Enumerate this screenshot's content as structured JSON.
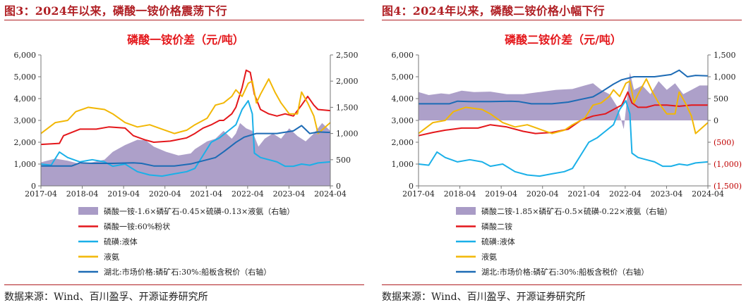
{
  "panels": [
    {
      "figure_title": "图3：2024年以来，磷酸一铵价格震荡下行",
      "source": "数据来源：Wind、百川盈孚、开源证券研究所"
    },
    {
      "figure_title": "图4：2024年以来，磷酸二铵价格小幅下行",
      "source": "数据来源：Wind、百川盈孚、开源证券研究所"
    }
  ],
  "chart_data": [
    {
      "type": "line",
      "title": "磷酸一铵价差（元/吨）",
      "x_ticks": [
        "2017-04",
        "2018-04",
        "2019-04",
        "2020-04",
        "2021-04",
        "2022-04",
        "2023-04",
        "2024-04"
      ],
      "x_range": [
        2017.25,
        2024.3
      ],
      "ylim_left": [
        0,
        6000
      ],
      "yticks_left": [
        "0",
        "1,000",
        "2,000",
        "3,000",
        "4,000",
        "5,000",
        "6,000"
      ],
      "ylim_right": [
        0,
        2500
      ],
      "yticks_right": [
        "0",
        "500",
        "1,000",
        "1,500",
        "2,000",
        "2,500"
      ],
      "grid": false,
      "legend_position": "bottom",
      "series": [
        {
          "name": "磷酸一铵-1.6×磷矿石-0.45×硫磺-0.13×液氨（右轴）",
          "render": "area",
          "axis": "right",
          "color": "#a99bc6",
          "x": [
            2017.25,
            2017.6,
            2017.9,
            2018.2,
            2018.5,
            2018.8,
            2019.0,
            2019.3,
            2019.6,
            2019.8,
            2020.0,
            2020.3,
            2020.6,
            2020.9,
            2021.0,
            2021.3,
            2021.5,
            2021.7,
            2021.9,
            2022.0,
            2022.1,
            2022.25,
            2022.4,
            2022.55,
            2022.7,
            2022.9,
            2023.1,
            2023.3,
            2023.5,
            2023.7,
            2023.9,
            2024.1,
            2024.3
          ],
          "values": [
            450,
            520,
            480,
            420,
            450,
            500,
            650,
            780,
            880,
            870,
            750,
            650,
            580,
            620,
            700,
            850,
            900,
            1050,
            900,
            1000,
            1200,
            1100,
            1050,
            750,
            900,
            1000,
            900,
            1100,
            950,
            850,
            1000,
            1200,
            1050
          ]
        },
        {
          "name": "磷酸一铵:60%粉状",
          "render": "line",
          "axis": "left",
          "color": "#e4171b",
          "x": [
            2017.25,
            2017.7,
            2017.8,
            2018.0,
            2018.2,
            2018.6,
            2018.9,
            2019.3,
            2019.5,
            2019.8,
            2020.0,
            2020.4,
            2020.8,
            2020.9,
            2021.0,
            2021.2,
            2021.4,
            2021.6,
            2021.7,
            2021.9,
            2022.0,
            2022.15,
            2022.25,
            2022.35,
            2022.45,
            2022.6,
            2022.8,
            2023.0,
            2023.2,
            2023.4,
            2023.6,
            2023.75,
            2023.9,
            2024.0,
            2024.3
          ],
          "values": [
            1900,
            1950,
            2300,
            2450,
            2600,
            2600,
            2700,
            2650,
            2300,
            2100,
            2000,
            2050,
            2200,
            2300,
            2400,
            2650,
            2800,
            3000,
            3000,
            3300,
            3600,
            4500,
            5300,
            5200,
            4200,
            3500,
            3300,
            3200,
            3300,
            3200,
            3700,
            4100,
            3700,
            3500,
            3450
          ]
        },
        {
          "name": "硫磺:液体",
          "render": "line",
          "axis": "left",
          "color": "#1ab0e8",
          "x": [
            2017.25,
            2017.5,
            2017.7,
            2017.9,
            2018.2,
            2018.5,
            2018.8,
            2019.0,
            2019.3,
            2019.6,
            2019.9,
            2020.2,
            2020.5,
            2020.8,
            2021.0,
            2021.2,
            2021.4,
            2021.6,
            2021.8,
            2022.0,
            2022.15,
            2022.3,
            2022.4,
            2022.45,
            2022.6,
            2022.8,
            2023.0,
            2023.2,
            2023.4,
            2023.6,
            2023.8,
            2024.0,
            2024.3
          ],
          "values": [
            1000,
            950,
            1550,
            1300,
            1100,
            1200,
            1100,
            900,
            1000,
            650,
            500,
            450,
            550,
            650,
            800,
            1400,
            2000,
            2200,
            2500,
            2800,
            3500,
            3900,
            3300,
            1500,
            1300,
            1200,
            1100,
            900,
            900,
            1000,
            950,
            1050,
            1100
          ]
        },
        {
          "name": "液氨",
          "render": "line",
          "axis": "left",
          "color": "#f2b705",
          "x": [
            2017.25,
            2017.6,
            2017.9,
            2018.1,
            2018.4,
            2018.8,
            2019.0,
            2019.3,
            2019.6,
            2019.9,
            2020.2,
            2020.5,
            2020.8,
            2021.0,
            2021.3,
            2021.5,
            2021.7,
            2021.9,
            2022.0,
            2022.15,
            2022.3,
            2022.4,
            2022.5,
            2022.6,
            2022.8,
            2022.95,
            2023.1,
            2023.3,
            2023.5,
            2023.6,
            2023.75,
            2023.9,
            2024.0,
            2024.3
          ],
          "values": [
            2400,
            2900,
            3000,
            3400,
            3600,
            3500,
            3300,
            2900,
            2700,
            2800,
            2600,
            2400,
            2550,
            2800,
            3100,
            3700,
            3800,
            4100,
            4400,
            4100,
            4700,
            4800,
            3800,
            4200,
            4900,
            4300,
            3800,
            3300,
            3300,
            4300,
            3800,
            3200,
            2400,
            2900
          ]
        },
        {
          "name": "湖北:市场价格:磷矿石:30%:船板含税价（右轴）",
          "render": "line",
          "axis": "right",
          "color": "#1d6bb5",
          "x": [
            2017.25,
            2018.0,
            2018.2,
            2018.5,
            2019.0,
            2019.5,
            2019.7,
            2020.0,
            2020.5,
            2020.9,
            2021.2,
            2021.5,
            2021.7,
            2021.85,
            2022.0,
            2022.2,
            2022.5,
            2023.0,
            2023.4,
            2023.6,
            2023.8,
            2024.0,
            2024.3
          ],
          "values": [
            380,
            380,
            440,
            430,
            430,
            440,
            430,
            380,
            380,
            420,
            480,
            540,
            650,
            740,
            830,
            930,
            1000,
            1000,
            1050,
            1150,
            1000,
            1030,
            1020
          ]
        }
      ]
    },
    {
      "type": "line",
      "title": "磷酸二铵价差（元/吨）",
      "x_ticks": [
        "2017-04",
        "2018-04",
        "2019-04",
        "2020-04",
        "2021-04",
        "2022-04",
        "2023-04",
        "2024-04"
      ],
      "x_range": [
        2017.25,
        2024.3
      ],
      "ylim_left": [
        0,
        6000
      ],
      "yticks_left": [
        "0",
        "1,000",
        "2,000",
        "3,000",
        "4,000",
        "5,000",
        "6,000"
      ],
      "ylim_right": [
        -1500,
        1500
      ],
      "yticks_right": [
        "(1,500)",
        "(1,000)",
        "(500)",
        "0",
        "500",
        "1,000",
        "1,500"
      ],
      "grid": false,
      "legend_position": "bottom",
      "series": [
        {
          "name": "磷酸二铵-1.85×磷矿石-0.5×硫磺-0.22×液氨（右轴）",
          "render": "area",
          "axis": "right",
          "color": "#a99bc6",
          "x": [
            2017.25,
            2017.5,
            2017.8,
            2018.0,
            2018.3,
            2018.6,
            2019.0,
            2019.4,
            2019.8,
            2020.2,
            2020.6,
            2021.0,
            2021.3,
            2021.5,
            2021.7,
            2021.9,
            2022.1,
            2022.25,
            2022.4,
            2022.5,
            2022.7,
            2022.9,
            2023.1,
            2023.3,
            2023.5,
            2023.7,
            2023.9,
            2024.1,
            2024.3
          ],
          "values": [
            650,
            580,
            620,
            600,
            680,
            650,
            660,
            600,
            600,
            650,
            700,
            720,
            800,
            850,
            700,
            600,
            300,
            -200,
            1100,
            700,
            800,
            600,
            900,
            700,
            850,
            600,
            700,
            800,
            800
          ]
        },
        {
          "name": "磷酸二铵",
          "render": "line",
          "axis": "left",
          "color": "#e4171b",
          "x": [
            2017.25,
            2017.6,
            2017.9,
            2018.3,
            2018.7,
            2019.0,
            2019.4,
            2019.8,
            2020.1,
            2020.5,
            2020.9,
            2021.2,
            2021.5,
            2021.8,
            2022.0,
            2022.2,
            2022.35,
            2022.45,
            2022.6,
            2022.8,
            2023.0,
            2023.3,
            2023.6,
            2023.9,
            2024.1,
            2024.3
          ],
          "values": [
            2300,
            2450,
            2550,
            2650,
            2650,
            2800,
            2700,
            2500,
            2400,
            2450,
            2600,
            3000,
            3200,
            3300,
            3500,
            3700,
            4300,
            3800,
            3600,
            3600,
            3700,
            3700,
            3650,
            3700,
            3700,
            3700
          ]
        },
        {
          "name": "硫磺:液体",
          "render": "line",
          "axis": "left",
          "color": "#1ab0e8",
          "x": [
            2017.25,
            2017.5,
            2017.7,
            2017.9,
            2018.2,
            2018.5,
            2018.8,
            2019.0,
            2019.3,
            2019.6,
            2019.9,
            2020.2,
            2020.5,
            2020.8,
            2021.0,
            2021.2,
            2021.4,
            2021.6,
            2021.8,
            2022.0,
            2022.15,
            2022.3,
            2022.4,
            2022.45,
            2022.6,
            2022.8,
            2023.0,
            2023.2,
            2023.4,
            2023.6,
            2023.8,
            2024.0,
            2024.3
          ],
          "values": [
            1000,
            950,
            1550,
            1300,
            1100,
            1200,
            1100,
            900,
            1000,
            650,
            500,
            450,
            550,
            650,
            800,
            1400,
            2000,
            2200,
            2500,
            2800,
            3500,
            3900,
            3300,
            1500,
            1300,
            1200,
            1100,
            900,
            900,
            1000,
            950,
            1050,
            1100
          ]
        },
        {
          "name": "液氨",
          "render": "line",
          "axis": "left",
          "color": "#f2b705",
          "x": [
            2017.25,
            2017.6,
            2017.9,
            2018.1,
            2018.4,
            2018.8,
            2019.0,
            2019.3,
            2019.6,
            2019.9,
            2020.2,
            2020.5,
            2020.8,
            2021.0,
            2021.3,
            2021.5,
            2021.7,
            2021.9,
            2022.0,
            2022.15,
            2022.3,
            2022.4,
            2022.5,
            2022.6,
            2022.8,
            2022.95,
            2023.1,
            2023.3,
            2023.5,
            2023.6,
            2023.75,
            2023.9,
            2024.0,
            2024.3
          ],
          "values": [
            2400,
            2900,
            3000,
            3400,
            3600,
            3500,
            3300,
            2900,
            2700,
            2800,
            2600,
            2400,
            2550,
            2800,
            3100,
            3700,
            3800,
            4100,
            4400,
            4100,
            4700,
            4800,
            3800,
            4200,
            4900,
            4300,
            3800,
            3300,
            3300,
            4300,
            3800,
            3200,
            2400,
            2900
          ]
        },
        {
          "name": "湖北:市场价格:磷矿石:30%:船板含税价（右轴）",
          "render": "line",
          "axis": "right",
          "color": "#1d6bb5",
          "x": [
            2017.25,
            2018.0,
            2018.2,
            2018.5,
            2019.0,
            2019.5,
            2019.7,
            2020.0,
            2020.5,
            2020.9,
            2021.2,
            2021.5,
            2021.7,
            2021.85,
            2022.0,
            2022.2,
            2022.5,
            2023.0,
            2023.4,
            2023.6,
            2023.8,
            2024.0,
            2024.3
          ],
          "values": [
            380,
            380,
            440,
            430,
            430,
            440,
            430,
            380,
            380,
            420,
            480,
            540,
            650,
            740,
            830,
            930,
            1000,
            1000,
            1050,
            1150,
            1000,
            1030,
            1020
          ]
        }
      ]
    }
  ]
}
